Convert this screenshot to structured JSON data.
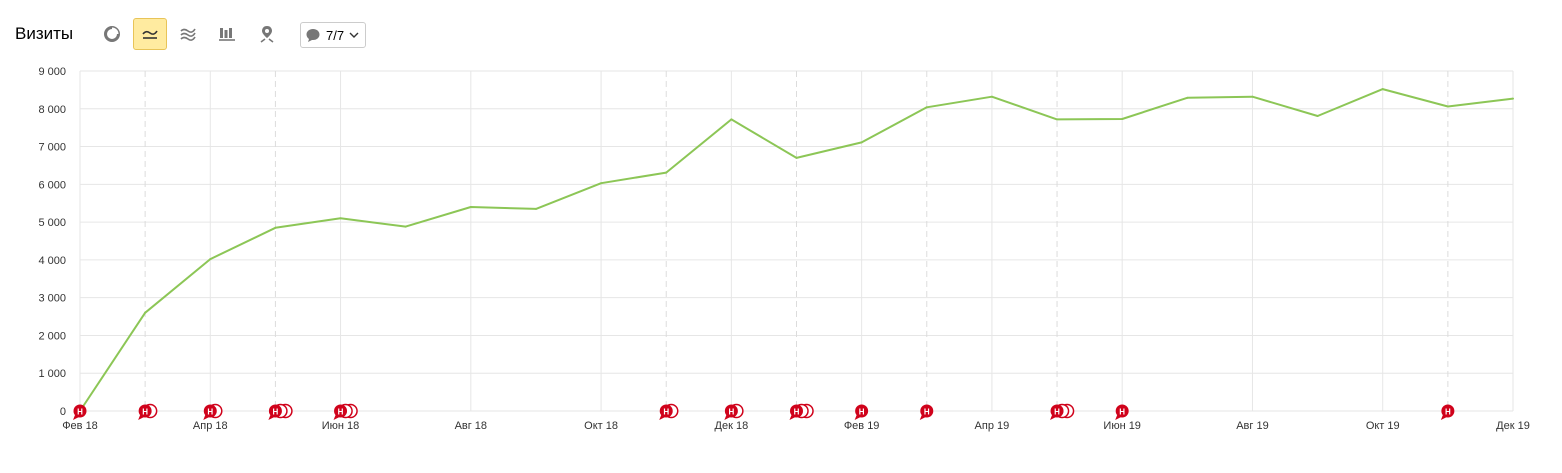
{
  "header": {
    "title": "Визиты",
    "notes_label": "7/7"
  },
  "toolbar": {
    "buttons": [
      {
        "name": "pie-chart-icon",
        "active": false
      },
      {
        "name": "line-chart-icon",
        "active": true
      },
      {
        "name": "area-chart-icon",
        "active": false
      },
      {
        "name": "bar-chart-icon",
        "active": false
      },
      {
        "name": "map-icon",
        "active": false
      }
    ]
  },
  "colors": {
    "line": "#8cc656",
    "grid": "#e6e6e6",
    "note": "#d0021b",
    "active_bg": "#ffeba0"
  },
  "chart_data": {
    "type": "line",
    "title": "",
    "xlabel": "",
    "ylabel": "",
    "ylim": [
      0,
      9000
    ],
    "yticks": [
      "0",
      "1 000",
      "2 000",
      "3 000",
      "4 000",
      "5 000",
      "6 000",
      "7 000",
      "8 000",
      "9 000"
    ],
    "xticks": [
      "Фев 18",
      "Апр 18",
      "Июн 18",
      "Авг 18",
      "Окт 18",
      "Дек 18",
      "Фев 19",
      "Апр 19",
      "Июн 19",
      "Авг 19",
      "Окт 19",
      "Дек 19"
    ],
    "x": [
      "Фев 18",
      "Мар 18",
      "Апр 18",
      "Май 18",
      "Июн 18",
      "Июл 18",
      "Авг 18",
      "Сен 18",
      "Окт 18",
      "Ноя 18",
      "Дек 18",
      "Янв 19",
      "Фев 19",
      "Мар 19",
      "Апр 19",
      "Май 19",
      "Июн 19",
      "Июл 19",
      "Авг 19",
      "Сен 19",
      "Окт 19",
      "Ноя 19",
      "Дек 19"
    ],
    "series": [
      {
        "name": "",
        "values": [
          0,
          2600,
          4020,
          4850,
          5100,
          4880,
          5400,
          5350,
          6030,
          6310,
          7720,
          6700,
          7110,
          8040,
          8320,
          7720,
          7730,
          8290,
          8320,
          7810,
          8520,
          8060,
          8270
        ]
      }
    ],
    "notes": [
      {
        "month_index": 0,
        "count": 1,
        "symbol": "Н"
      },
      {
        "month_index": 1,
        "count": 2,
        "symbol": "Н"
      },
      {
        "month_index": 2,
        "count": 2,
        "symbol": "Н"
      },
      {
        "month_index": 3,
        "count": 3,
        "symbol": "Н"
      },
      {
        "month_index": 4,
        "count": 3,
        "symbol": "Н"
      },
      {
        "month_index": 9,
        "count": 2,
        "symbol": "Н"
      },
      {
        "month_index": 10,
        "count": 2,
        "symbol": "Н"
      },
      {
        "month_index": 11,
        "count": 3,
        "symbol": "Н"
      },
      {
        "month_index": 12,
        "count": 1,
        "symbol": "Н"
      },
      {
        "month_index": 13,
        "count": 1,
        "symbol": "Н"
      },
      {
        "month_index": 15,
        "count": 3,
        "symbol": "Н"
      },
      {
        "month_index": 16,
        "count": 1,
        "symbol": "Н"
      },
      {
        "month_index": 21,
        "count": 1,
        "symbol": "Н"
      }
    ],
    "grid": true,
    "legend": "none"
  }
}
